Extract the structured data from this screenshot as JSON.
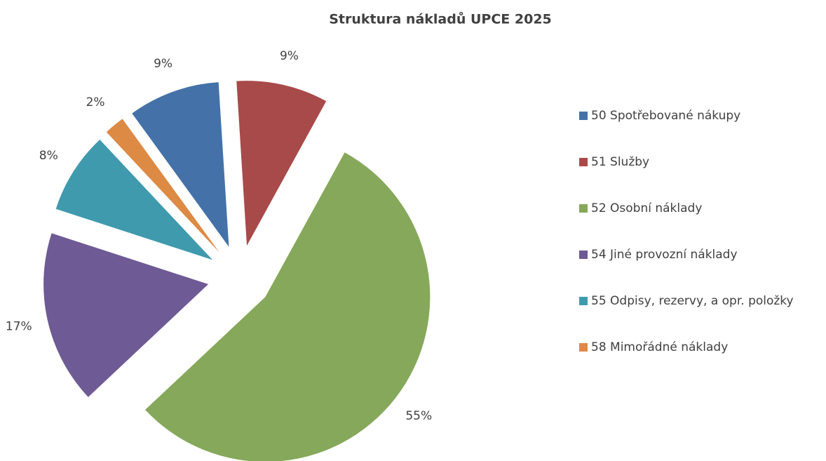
{
  "chart_data": {
    "type": "pie",
    "title": "Struktura nákladů UPCE 2025",
    "categories": [
      "50 Spotřebované nákupy",
      "51 Služby",
      "52 Osobní náklady",
      "54 Jiné provozní náklady",
      "55 Odpisy, rezervy, a opr. položky",
      "58 Mimořádné náklady"
    ],
    "values": [
      9,
      9,
      55,
      17,
      8,
      2
    ],
    "value_labels": [
      "9%",
      "9%",
      "55%",
      "17%",
      "8%",
      "2%"
    ],
    "colors": [
      "#4472a8",
      "#a84a4a",
      "#86a85a",
      "#6e5a94",
      "#3f9aae",
      "#dc8a44"
    ],
    "legend": "right",
    "exploded": true
  }
}
